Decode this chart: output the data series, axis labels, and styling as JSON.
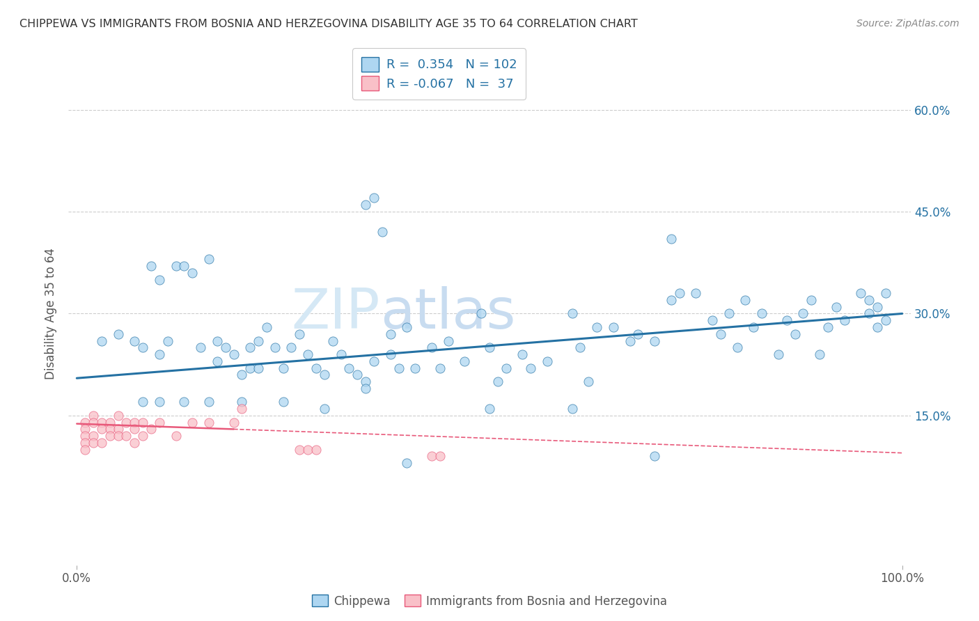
{
  "title": "CHIPPEWA VS IMMIGRANTS FROM BOSNIA AND HERZEGOVINA DISABILITY AGE 35 TO 64 CORRELATION CHART",
  "source": "Source: ZipAtlas.com",
  "ylabel": "Disability Age 35 to 64",
  "R1": 0.354,
  "N1": 102,
  "R2": -0.067,
  "N2": 37,
  "legend_label1": "Chippewa",
  "legend_label2": "Immigrants from Bosnia and Herzegovina",
  "color_blue": "#AED6F1",
  "color_pink": "#F1948A",
  "line_blue": "#2471A3",
  "line_pink": "#E8597A",
  "watermark_color": "#D5E8F5",
  "blue_trend": [
    0.205,
    0.3
  ],
  "pink_trend_solid": [
    0.135,
    0.155
  ],
  "pink_trend_dash": [
    0.155,
    0.095
  ],
  "blue_x": [
    0.03,
    0.05,
    0.07,
    0.08,
    0.09,
    0.1,
    0.1,
    0.11,
    0.12,
    0.13,
    0.14,
    0.15,
    0.16,
    0.17,
    0.17,
    0.18,
    0.19,
    0.2,
    0.21,
    0.21,
    0.22,
    0.22,
    0.23,
    0.24,
    0.25,
    0.26,
    0.27,
    0.28,
    0.29,
    0.3,
    0.31,
    0.32,
    0.33,
    0.34,
    0.35,
    0.36,
    0.38,
    0.38,
    0.39,
    0.4,
    0.41,
    0.43,
    0.44,
    0.45,
    0.47,
    0.49,
    0.5,
    0.51,
    0.52,
    0.54,
    0.55,
    0.57,
    0.6,
    0.61,
    0.62,
    0.63,
    0.65,
    0.67,
    0.68,
    0.7,
    0.72,
    0.73,
    0.75,
    0.77,
    0.78,
    0.79,
    0.8,
    0.81,
    0.82,
    0.83,
    0.85,
    0.86,
    0.87,
    0.88,
    0.89,
    0.9,
    0.91,
    0.92,
    0.93,
    0.95,
    0.96,
    0.96,
    0.97,
    0.97,
    0.98,
    0.98,
    0.08,
    0.1,
    0.13,
    0.16,
    0.2,
    0.25,
    0.3,
    0.35,
    0.4,
    0.5,
    0.6,
    0.7,
    0.35,
    0.36,
    0.37,
    0.72
  ],
  "blue_y": [
    0.26,
    0.27,
    0.26,
    0.25,
    0.37,
    0.35,
    0.24,
    0.26,
    0.37,
    0.37,
    0.36,
    0.25,
    0.38,
    0.26,
    0.23,
    0.25,
    0.24,
    0.21,
    0.22,
    0.25,
    0.22,
    0.26,
    0.28,
    0.25,
    0.22,
    0.25,
    0.27,
    0.24,
    0.22,
    0.21,
    0.26,
    0.24,
    0.22,
    0.21,
    0.2,
    0.23,
    0.27,
    0.24,
    0.22,
    0.28,
    0.22,
    0.25,
    0.22,
    0.26,
    0.23,
    0.3,
    0.25,
    0.2,
    0.22,
    0.24,
    0.22,
    0.23,
    0.3,
    0.25,
    0.2,
    0.28,
    0.28,
    0.26,
    0.27,
    0.26,
    0.32,
    0.33,
    0.33,
    0.29,
    0.27,
    0.3,
    0.25,
    0.32,
    0.28,
    0.3,
    0.24,
    0.29,
    0.27,
    0.3,
    0.32,
    0.24,
    0.28,
    0.31,
    0.29,
    0.33,
    0.3,
    0.32,
    0.28,
    0.31,
    0.29,
    0.33,
    0.17,
    0.17,
    0.17,
    0.17,
    0.17,
    0.17,
    0.16,
    0.19,
    0.08,
    0.16,
    0.16,
    0.09,
    0.46,
    0.47,
    0.42,
    0.41
  ],
  "pink_x": [
    0.01,
    0.01,
    0.01,
    0.01,
    0.01,
    0.02,
    0.02,
    0.02,
    0.02,
    0.03,
    0.03,
    0.03,
    0.04,
    0.04,
    0.04,
    0.05,
    0.05,
    0.05,
    0.06,
    0.06,
    0.07,
    0.07,
    0.07,
    0.08,
    0.08,
    0.09,
    0.1,
    0.12,
    0.14,
    0.16,
    0.19,
    0.2,
    0.27,
    0.28,
    0.29,
    0.43,
    0.44
  ],
  "pink_y": [
    0.14,
    0.13,
    0.12,
    0.11,
    0.1,
    0.15,
    0.14,
    0.12,
    0.11,
    0.14,
    0.13,
    0.11,
    0.14,
    0.13,
    0.12,
    0.15,
    0.13,
    0.12,
    0.14,
    0.12,
    0.14,
    0.13,
    0.11,
    0.14,
    0.12,
    0.13,
    0.14,
    0.12,
    0.14,
    0.14,
    0.14,
    0.16,
    0.1,
    0.1,
    0.1,
    0.09,
    0.09
  ]
}
